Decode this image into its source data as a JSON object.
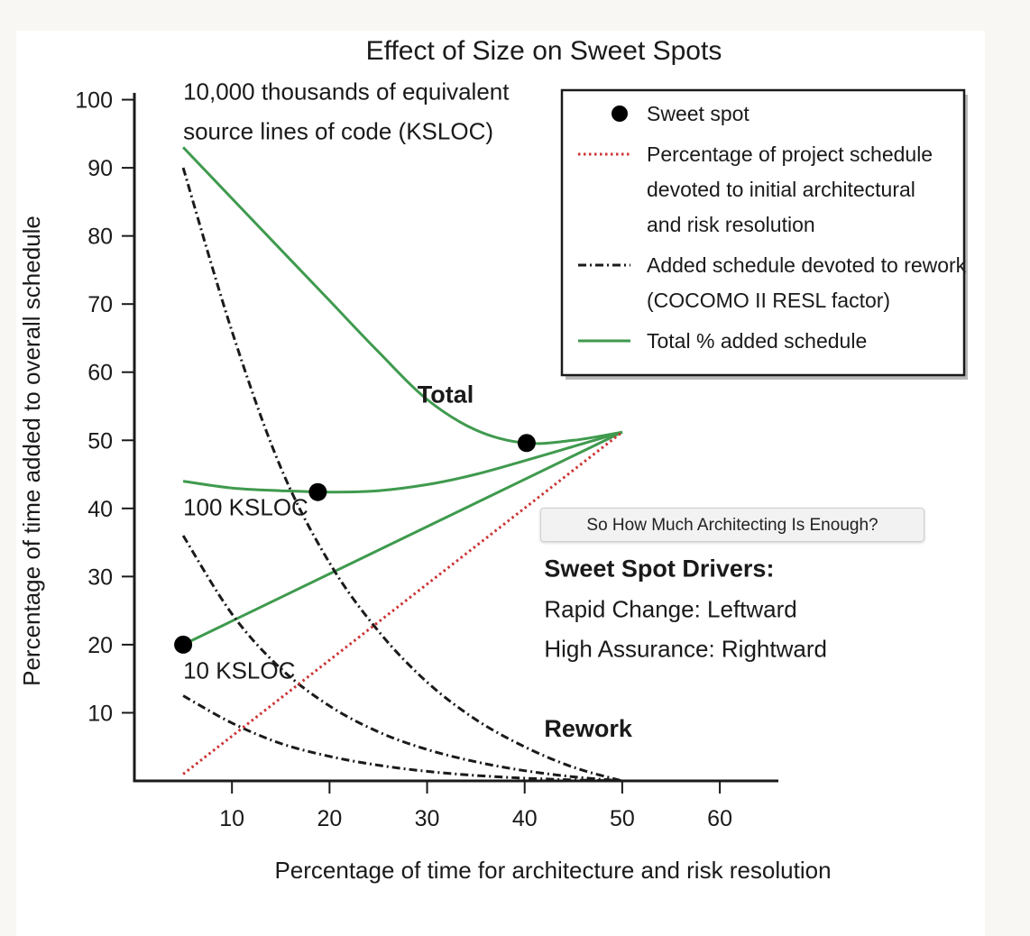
{
  "tooltip": {
    "text": "So How Much Architecting Is Enough?"
  },
  "colors": {
    "total": "#3f9a4e",
    "rework": "#1a1a1a",
    "architecture": "#cc3333",
    "sweet_spot": "#000000"
  },
  "chart_data": {
    "type": "line",
    "title": "Effect of Size on Sweet Spots",
    "xlabel": "Percentage of time for architecture and risk resolution",
    "ylabel": "Percentage of time added to overall schedule",
    "xlim": [
      0,
      66
    ],
    "ylim": [
      0,
      101
    ],
    "xticks": [
      10,
      20,
      30,
      40,
      50,
      60
    ],
    "yticks": [
      10,
      20,
      30,
      40,
      50,
      60,
      70,
      80,
      90,
      100
    ],
    "series": [
      {
        "name": "10,000 KSLOC total",
        "kind": "total",
        "label": "10,000 thousands of equivalent source lines of code (KSLOC)",
        "x": [
          5,
          10,
          15,
          20,
          25,
          30,
          35,
          40,
          45,
          50
        ],
        "y": [
          93,
          85.5,
          78,
          70.5,
          63,
          56,
          51.5,
          49.6,
          50,
          51.2
        ]
      },
      {
        "name": "100 KSLOC total",
        "kind": "total",
        "label": "100 KSLOC",
        "x": [
          5,
          10,
          15,
          20,
          25,
          30,
          35,
          40,
          45,
          50
        ],
        "y": [
          44,
          43,
          42.6,
          42.4,
          42.6,
          43.5,
          45,
          47,
          49.1,
          51.2
        ]
      },
      {
        "name": "10 KSLOC total",
        "kind": "total",
        "label": "10 KSLOC",
        "x": [
          5,
          50
        ],
        "y": [
          20,
          51.2
        ]
      },
      {
        "name": "10,000 KSLOC rework",
        "kind": "rework",
        "x": [
          5,
          10,
          15,
          20,
          25,
          30,
          35,
          40,
          45,
          50
        ],
        "y": [
          90,
          66,
          46,
          32,
          22,
          14.5,
          9,
          5,
          2,
          0
        ]
      },
      {
        "name": "100 KSLOC rework",
        "kind": "rework",
        "x": [
          5,
          10,
          15,
          20,
          25,
          30,
          35,
          40,
          45,
          50
        ],
        "y": [
          36,
          24.5,
          16.5,
          11,
          7.2,
          4.6,
          2.8,
          1.5,
          0.6,
          0
        ]
      },
      {
        "name": "10 KSLOC rework",
        "kind": "rework",
        "x": [
          5,
          10,
          15,
          20,
          25,
          30,
          35,
          40,
          45,
          50
        ],
        "y": [
          12.5,
          8.5,
          5.5,
          3.6,
          2.3,
          1.4,
          0.8,
          0.4,
          0.15,
          0
        ]
      },
      {
        "name": "Architecture percentage",
        "kind": "architecture",
        "x": [
          5,
          50
        ],
        "y": [
          1,
          51.2
        ]
      }
    ],
    "sweet_spots": [
      {
        "x": 5,
        "y": 20
      },
      {
        "x": 18.8,
        "y": 42.4
      },
      {
        "x": 40.2,
        "y": 49.6
      }
    ],
    "annotations": [
      {
        "id": "anno-10000",
        "lines": [
          "10,000 thousands of equivalent",
          "source lines of code (KSLOC)"
        ],
        "x": 5,
        "y": 100,
        "bold": false
      },
      {
        "id": "anno-100",
        "lines": [
          "100 KSLOC"
        ],
        "x": 5,
        "y": 39,
        "bold": false
      },
      {
        "id": "anno-10",
        "lines": [
          "10 KSLOC"
        ],
        "x": 5,
        "y": 15,
        "bold": false
      },
      {
        "id": "anno-total",
        "lines": [
          "Total"
        ],
        "x": 29,
        "y": 55.5,
        "bold": true
      },
      {
        "id": "anno-rework",
        "lines": [
          "Rework"
        ],
        "x": 42,
        "y": 6.5,
        "bold": true
      },
      {
        "id": "anno-drivers-title",
        "lines": [
          "Sweet Spot Drivers:"
        ],
        "x": 42,
        "y": 30,
        "bold": true
      },
      {
        "id": "anno-drivers",
        "lines": [
          "Rapid Change: Leftward",
          "High Assurance: Rightward"
        ],
        "x": 42,
        "y": 24,
        "bold": false
      }
    ],
    "legend": {
      "position": "top-right",
      "entries": [
        {
          "kind": "sweet_spot",
          "lines": [
            "Sweet spot"
          ]
        },
        {
          "kind": "architecture",
          "lines": [
            "Percentage of project schedule",
            "devoted to initial architectural",
            "and risk resolution"
          ]
        },
        {
          "kind": "rework",
          "lines": [
            "Added schedule devoted to rework",
            "(COCOMO II RESL factor)"
          ]
        },
        {
          "kind": "total",
          "lines": [
            "Total % added schedule"
          ]
        }
      ]
    }
  }
}
